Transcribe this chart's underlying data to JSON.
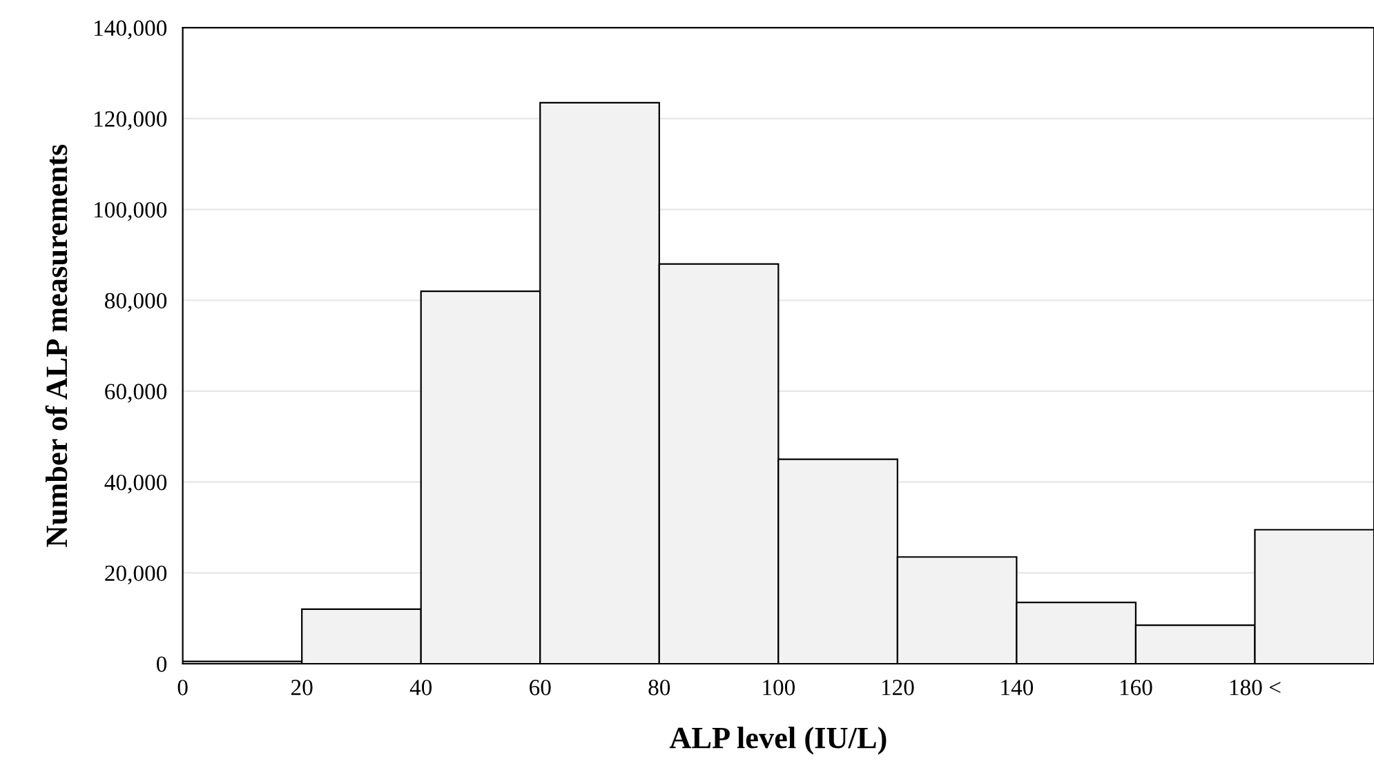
{
  "chart_data": {
    "type": "histogram",
    "xlabel": "ALP level (IU/L)",
    "ylabel": "Number of ALP measurements",
    "bins": [
      0,
      20,
      40,
      60,
      80,
      100,
      120,
      140,
      160,
      180,
      200
    ],
    "values": [
      500,
      12000,
      82000,
      123500,
      88000,
      45000,
      23500,
      13500,
      8500,
      29500
    ],
    "color": "#f2f2f2",
    "xlim": [
      0,
      200
    ],
    "xticks": [
      0,
      20,
      40,
      60,
      80,
      100,
      120,
      140,
      160,
      {
        "value": 180,
        "label": "180 <"
      }
    ],
    "ylim": [
      0,
      140000
    ],
    "yticks": [
      {
        "value": 0,
        "label": "0"
      },
      {
        "value": 20000,
        "label": "20,000"
      },
      {
        "value": 40000,
        "label": "40,000"
      },
      {
        "value": 60000,
        "label": "60,000"
      },
      {
        "value": 80000,
        "label": "80,000"
      },
      {
        "value": 100000,
        "label": "100,000"
      },
      {
        "value": 120000,
        "label": "120,000"
      },
      {
        "value": 140000,
        "label": "140,000"
      }
    ],
    "grid": "y"
  }
}
